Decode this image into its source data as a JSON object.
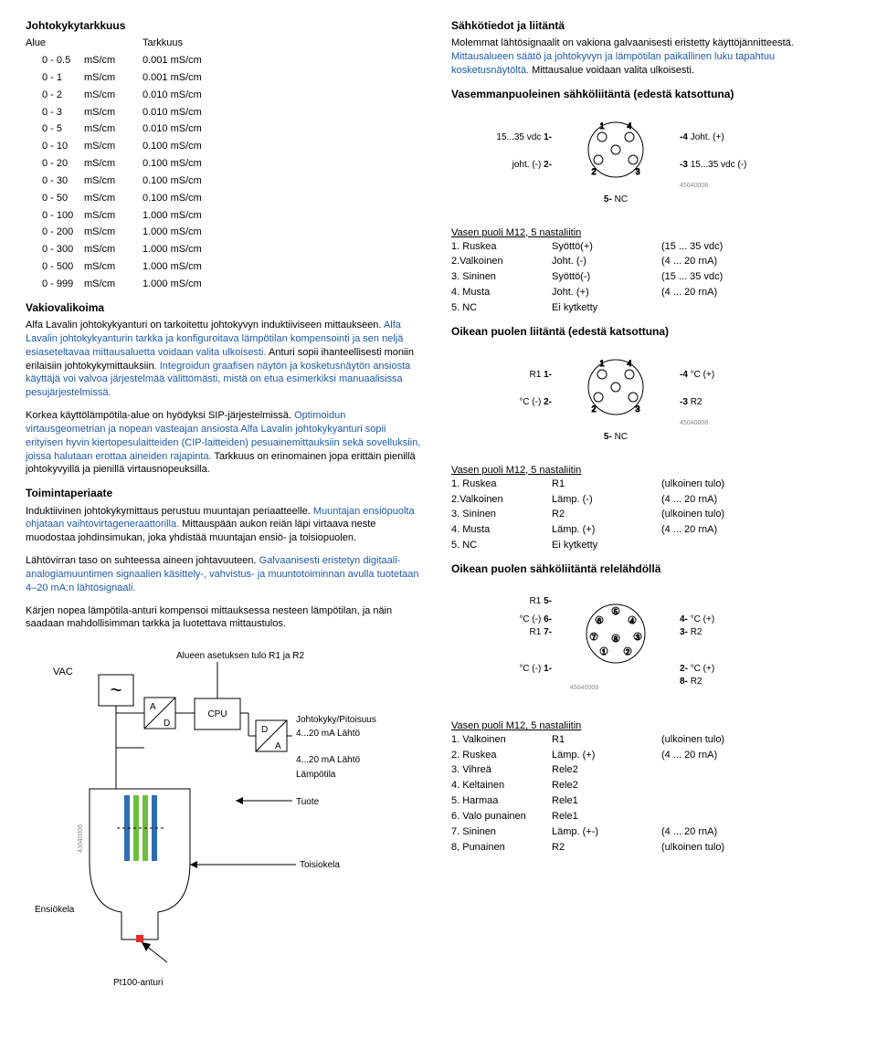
{
  "left": {
    "tarkkuus_title": "Johtokykytarkkuus",
    "tarkkuus_headers": {
      "alue": "Alue",
      "tarkkuus": "Tarkkuus"
    },
    "tarkkuus_rows": [
      {
        "r": "0 - 0.5",
        "u": "mS/cm",
        "t": "0.001 mS/cm"
      },
      {
        "r": "0 - 1",
        "u": "mS/cm",
        "t": "0.001 mS/cm"
      },
      {
        "r": "0 - 2",
        "u": "mS/cm",
        "t": "0.010 mS/cm"
      },
      {
        "r": "0 - 3",
        "u": "mS/cm",
        "t": "0.010 mS/cm"
      },
      {
        "r": "0 - 5",
        "u": "mS/cm",
        "t": "0.010 mS/cm"
      },
      {
        "r": "0 - 10",
        "u": "mS/cm",
        "t": "0.100 mS/cm"
      },
      {
        "r": "0 - 20",
        "u": "mS/cm",
        "t": "0.100 mS/cm"
      },
      {
        "r": "0 - 30",
        "u": "mS/cm",
        "t": "0.100 mS/cm"
      },
      {
        "r": "0 - 50",
        "u": "mS/cm",
        "t": "0.100 mS/cm"
      },
      {
        "r": "0 - 100",
        "u": "mS/cm",
        "t": "1.000 mS/cm"
      },
      {
        "r": "0 - 200",
        "u": "mS/cm",
        "t": "1.000 mS/cm"
      },
      {
        "r": "0 - 300",
        "u": "mS/cm",
        "t": "1.000 mS/cm"
      },
      {
        "r": "0 - 500",
        "u": "mS/cm",
        "t": "1.000 mS/cm"
      },
      {
        "r": "0 - 999",
        "u": "mS/cm",
        "t": "1.000 mS/cm"
      }
    ],
    "vakiovalikoima_title": "Vakiovalikoima",
    "vakiovalikoima_p1_a": "Alfa Lavalin johtokykyanturi on tarkoitettu johtokyvyn induktiiviseen mittaukseen. ",
    "vakiovalikoima_p1_b": "Alfa Lavalin johtokykyanturin tarkka ja konfiguroitava lämpötilan kompensointi ja sen neljä esiaseteltavaa mittausaluetta voidaan valita ulkoisesti. ",
    "vakiovalikoima_p1_c": "Anturi sopii ihanteellisesti moniin erilaisiin johtokykymittauksiin. ",
    "vakiovalikoima_p1_d": "Integroidun graafisen näytön ja kosketusnäytön ansiosta käyttäjä voi valvoa järjestelmää välittömästi, mistä on etua esimerkiksi manuaalisissa pesujärjestelmissä.",
    "vakiovalikoima_p2_a": "Korkea käyttölämpötila-alue on hyödyksi SIP-järjestelmissä. ",
    "vakiovalikoima_p2_b": "Optimoidun virtausgeometrian ja nopean vasteajan ansiosta Alfa Lavalin johtokykyanturi sopii erityisen hyvin kiertopesulaitteiden (CIP-laitteiden) pesuainemittauksiin sekä sovelluksiin, joissa halutaan erottaa aineiden rajapinta. ",
    "vakiovalikoima_p2_c": "Tarkkuus on erinomainen jopa erittäin pienillä johtokyvyillä ja pienillä virtausnopeuksilla.",
    "toiminta_title": "Toimintaperiaate",
    "toiminta_p1_a": "Induktiivinen johtokykymittaus perustuu muuntajan periaatteelle. ",
    "toiminta_p1_b": "Muuntajan ensiöpuolta ohjataan vaihtovirtageneraattorilla. ",
    "toiminta_p1_c": "Mittauspään aukon reiän läpi virtaava neste muodostaa johdinsimukan, joka yhdistää muuntajan ensiö- ja toisiopuolen.",
    "toiminta_p2_a": "Lähtövirran taso on suhteessa aineen johtavuuteen. ",
    "toiminta_p2_b": "Galvaanisesti eristetyn digitaali-analogiamuuntimen signaalien käsittely-, vahvistus- ja muuntotoiminnan avulla tuotetaan 4–20 mA:n lähtösignaali.",
    "toiminta_p3": "Kärjen nopea lämpötila-anturi kompensoi mittauksessa nesteen lämpötilan, ja näin saadaan mahdollisimman tarkka ja luotettava mittaustulos.",
    "diagram": {
      "vac": "VAC",
      "tilde": "~",
      "alue_label": "Alueen asetuksen tulo R1 ja R2",
      "a": "A",
      "d": "D",
      "cpu": "CPU",
      "jp": "Johtokyky/Pitoisuus",
      "out1": "4...20 mA Lähtö",
      "out2": "4...20 mA Lähtö",
      "lamp": "Lämpötila",
      "tuote": "Tuote",
      "toisiokela": "Toisiokela",
      "ensiokela": "Ensiökela",
      "pt100": "Pt100-anturi",
      "code": "43040006",
      "colors": {
        "line": "#000000",
        "bar_blue": "#2f6db3",
        "bar_green": "#6dbf3d",
        "probe_fill": "#f0f0f0",
        "red": "#e82a2a"
      }
    }
  },
  "right": {
    "sahko_title": "Sähkötiedot ja liitäntä",
    "sahko_p_a": "Molemmat lähtösignaalit on vakiona galvaanisesti eristetty käyttöjännitteestä. ",
    "sahko_p_b": "Mittausalueen säätö ja johtokyvyn ja lämpötilan paikallinen luku tapahtuu kosketusnäytöltä. ",
    "sahko_p_c": "Mittausalue voidaan valita ulkoisesti.",
    "vasen_sahko_title": "Vasemmanpuoleinen sähköliitäntä (edestä katsottuna)",
    "conn_pins": {
      "p1": "1",
      "p2": "2",
      "p3": "3",
      "p4": "4",
      "p5": "5"
    },
    "conn_code": "45040008",
    "conn1": {
      "l1": "15...35 vdc",
      "l1n": "1-",
      "l2": "joht. (-)",
      "l2n": "2-",
      "r1n": "-4",
      "r1": "Joht. (+)",
      "r2n": "-3",
      "r2": "15...35 vdc (-)",
      "c5": "5-",
      "nc": "NC"
    },
    "vasen_m12_title": "Vasen puoli M12, 5 nastaliitin",
    "m12a": [
      {
        "a": "1. Ruskea",
        "b": "Syöttö(+)",
        "c": "(15 ... 35 vdc)"
      },
      {
        "a": "2.Valkoinen",
        "b": "Joht. (-)",
        "c": "(4 ... 20 rnA)"
      },
      {
        "a": "3. Sininen",
        "b": "Syöttö(-)",
        "c": "(15 ... 35 vdc)"
      },
      {
        "a": "4. Musta",
        "b": "Joht. (+)",
        "c": "(4 ... 20 rnA)"
      },
      {
        "a": "5. NC",
        "b": "Ei kytketty",
        "c": ""
      }
    ],
    "oikea_title": "Oikean puolen liitäntä (edestä katsottuna)",
    "conn2": {
      "l1": "R1",
      "l1n": "1-",
      "l2": "°C (-)",
      "l2n": "2-",
      "r1n": "-4",
      "r1": "°C (+)",
      "r2n": "-3",
      "r2": "R2",
      "c5": "5-",
      "nc": "NC"
    },
    "m12b_title": "Vasen puoli M12, 5 nastaliitin",
    "m12b": [
      {
        "a": "1. Ruskea",
        "b": "R1",
        "c": "(ulkoinen tulo)"
      },
      {
        "a": "2.Valkoinen",
        "b": "Lämp. (-)",
        "c": "(4 ... 20 rnA)"
      },
      {
        "a": "3. Sininen",
        "b": "R2",
        "c": "(ulkoinen tulo)"
      },
      {
        "a": "4. Musta",
        "b": "Lämp. (+)",
        "c": "(4 ... 20 rnA)"
      },
      {
        "a": "5. NC",
        "b": "Ei kytketty",
        "c": ""
      }
    ],
    "oikea_rele_title": "Oikean puolen sähköliitäntä relelähdöllä",
    "conn8_code": "45040009",
    "conn3": {
      "l1": "R1",
      "l1n": "5-",
      "l2": "°C (-)",
      "l2n": "6-",
      "l3": "R1",
      "l3n": "7-",
      "l4": "°C (-)",
      "l4n": "1-",
      "r1n": "4-",
      "r1": "°C (+)",
      "r2n": "3-",
      "r2": "R2",
      "r3n": "2-",
      "r3": "°C (+)",
      "r4n": "8-",
      "r4": "R2"
    },
    "m12c_title": "Vasen puoli M12, 5 nastaliitin",
    "m12c": [
      {
        "a": "1. Valkoinen",
        "b": "R1",
        "c": "(ulkoinen tulo)"
      },
      {
        "a": "2. Ruskea",
        "b": "Lämp. (+)",
        "c": "(4 ... 20 rnA)"
      },
      {
        "a": "3. Vihreä",
        "b": "Rele2",
        "c": ""
      },
      {
        "a": "4. Keltainen",
        "b": "Rele2",
        "c": ""
      },
      {
        "a": "5. Harmaa",
        "b": "Rele1",
        "c": ""
      },
      {
        "a": "6. Valo punainen",
        "b": "Rele1",
        "c": ""
      },
      {
        "a": "7. Sininen",
        "b": "Lämp. (+-)",
        "c": "(4 ... 20 rnA)"
      },
      {
        "a": "8, Punainen",
        "b": "R2",
        "c": "(ulkoinen tulo)"
      }
    ]
  }
}
